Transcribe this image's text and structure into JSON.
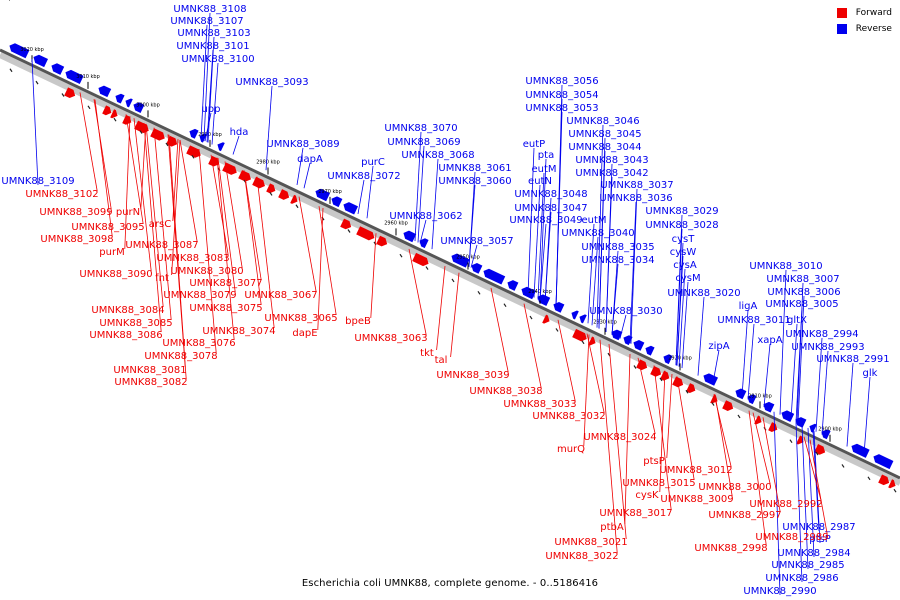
{
  "legend": {
    "forward_label": "Forward",
    "reverse_label": "Reverse",
    "forward_color": "#ee0000",
    "reverse_color": "#0000ee"
  },
  "caption": "Escherichia coli UMNK88, complete genome. - 0..5186416",
  "ticks": [
    "3020 kbp",
    "3010 kbp",
    "3000 kbp",
    "2990 kbp",
    "2980 kbp",
    "2970 kbp",
    "2960 kbp",
    "2950 kbp",
    "2940 kbp",
    "2930 kbp",
    "2920 kbp",
    "2910 kbp",
    "2900 kbp",
    "2890 kbp"
  ],
  "reverse_labels": [
    "UMNK88_3108",
    "UMNK88_3107",
    "UMNK88_3103",
    "UMNK88_3101",
    "UMNK88_3100",
    "UMNK88_3093",
    "upp",
    "hda",
    "UMNK88_3089",
    "dapA",
    "UMNK88_3109",
    "UMNK88_3070",
    "UMNK88_3069",
    "UMNK88_3068",
    "purC",
    "UMNK88_3072",
    "UMNK88_3061",
    "UMNK88_3060",
    "UMNK88_3062",
    "UMNK88_3057",
    "UMNK88_3056",
    "UMNK88_3054",
    "UMNK88_3053",
    "UMNK88_3046",
    "eutP",
    "UMNK88_3045",
    "pta",
    "UMNK88_3044",
    "eutM",
    "UMNK88_3043",
    "eutN",
    "UMNK88_3042",
    "UMNK88_3048",
    "UMNK88_3037",
    "UMNK88_3047",
    "UMNK88_3036",
    "UMNK88_3049",
    "UMNK88_3029",
    "eutM",
    "UMNK88_3040",
    "UMNK88_3028",
    "cysT",
    "UMNK88_3035",
    "cysW",
    "UMNK88_3034",
    "cysA",
    "cysM",
    "UMNK88_3020",
    "UMNK88_3030",
    "UMNK88_3010",
    "UMNK88_3007",
    "UMNK88_3006",
    "ligA",
    "UMNK88_3005",
    "UMNK88_3011",
    "gltX",
    "UMNK88_2994",
    "xapA",
    "zipA",
    "UMNK88_2993",
    "UMNK88_2991",
    "glk",
    "UMNK88_2987",
    "ptsP",
    "UMNK88_2984",
    "UMNK88_2985",
    "UMNK88_2986",
    "UMNK88_2990"
  ],
  "forward_labels": [
    "UMNK88_3102",
    "UMNK88_3099",
    "purN",
    "UMNK88_3095",
    "arsC",
    "UMNK88_3098",
    "purM",
    "UMNK88_3087",
    "UMNK88_3083",
    "UMNK88_3090",
    "fnt",
    "UMNK88_3080",
    "UMNK88_3077",
    "UMNK88_3079",
    "UMNK88_3067",
    "UMNK88_3084",
    "UMNK88_3075",
    "UMNK88_3085",
    "UMNK88_3065",
    "bpeB",
    "UMNK88_3074",
    "dapE",
    "UMNK88_3086",
    "UMNK88_3076",
    "UMNK88_3063",
    "UMNK88_3078",
    "tkt",
    "UMNK88_3081",
    "tal",
    "UMNK88_3082",
    "UMNK88_3039",
    "UMNK88_3038",
    "UMNK88_3033",
    "UMNK88_3032",
    "UMNK88_3024",
    "murQ",
    "ptsP",
    "UMNK88_3012",
    "UMNK88_3015",
    "UMNK88_3009",
    "cysK",
    "UMNK88_3000",
    "UMNK88_3017",
    "UMNK88_2992",
    "UMNK88_2997",
    "ptbA",
    "UMNK88_2989",
    "UMNK88_3021",
    "UMNK88_2998",
    "UMNK88_3022"
  ]
}
